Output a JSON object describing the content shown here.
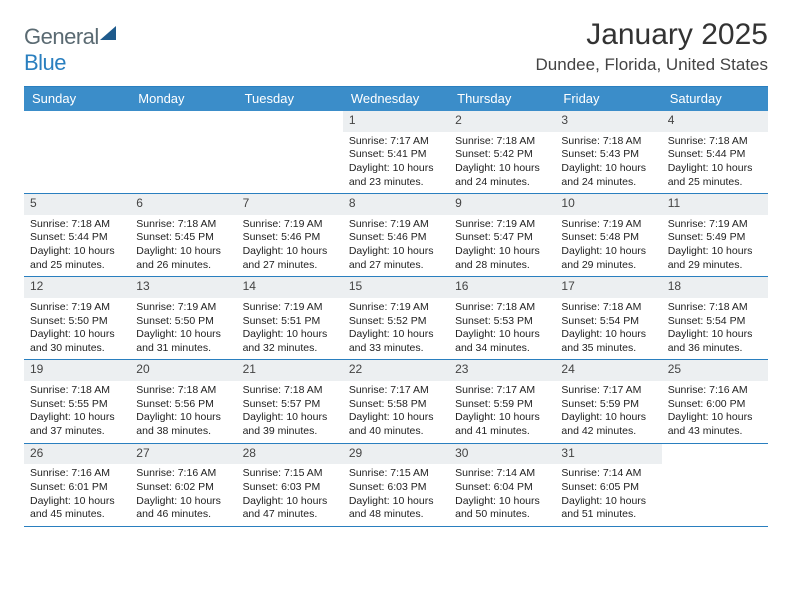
{
  "brand": {
    "part1": "General",
    "part2": "Blue"
  },
  "title": "January 2025",
  "location": "Dundee, Florida, United States",
  "colors": {
    "header_blue": "#3b8dc9",
    "rule_blue": "#2a7fbf",
    "daynum_bg": "#eceff1",
    "text": "#222222"
  },
  "weekdays": [
    "Sunday",
    "Monday",
    "Tuesday",
    "Wednesday",
    "Thursday",
    "Friday",
    "Saturday"
  ],
  "weeks": [
    [
      {
        "n": "",
        "sr": "",
        "ss": "",
        "dl": ""
      },
      {
        "n": "",
        "sr": "",
        "ss": "",
        "dl": ""
      },
      {
        "n": "",
        "sr": "",
        "ss": "",
        "dl": ""
      },
      {
        "n": "1",
        "sr": "7:17 AM",
        "ss": "5:41 PM",
        "dl": "10 hours and 23 minutes."
      },
      {
        "n": "2",
        "sr": "7:18 AM",
        "ss": "5:42 PM",
        "dl": "10 hours and 24 minutes."
      },
      {
        "n": "3",
        "sr": "7:18 AM",
        "ss": "5:43 PM",
        "dl": "10 hours and 24 minutes."
      },
      {
        "n": "4",
        "sr": "7:18 AM",
        "ss": "5:44 PM",
        "dl": "10 hours and 25 minutes."
      }
    ],
    [
      {
        "n": "5",
        "sr": "7:18 AM",
        "ss": "5:44 PM",
        "dl": "10 hours and 25 minutes."
      },
      {
        "n": "6",
        "sr": "7:18 AM",
        "ss": "5:45 PM",
        "dl": "10 hours and 26 minutes."
      },
      {
        "n": "7",
        "sr": "7:19 AM",
        "ss": "5:46 PM",
        "dl": "10 hours and 27 minutes."
      },
      {
        "n": "8",
        "sr": "7:19 AM",
        "ss": "5:46 PM",
        "dl": "10 hours and 27 minutes."
      },
      {
        "n": "9",
        "sr": "7:19 AM",
        "ss": "5:47 PM",
        "dl": "10 hours and 28 minutes."
      },
      {
        "n": "10",
        "sr": "7:19 AM",
        "ss": "5:48 PM",
        "dl": "10 hours and 29 minutes."
      },
      {
        "n": "11",
        "sr": "7:19 AM",
        "ss": "5:49 PM",
        "dl": "10 hours and 29 minutes."
      }
    ],
    [
      {
        "n": "12",
        "sr": "7:19 AM",
        "ss": "5:50 PM",
        "dl": "10 hours and 30 minutes."
      },
      {
        "n": "13",
        "sr": "7:19 AM",
        "ss": "5:50 PM",
        "dl": "10 hours and 31 minutes."
      },
      {
        "n": "14",
        "sr": "7:19 AM",
        "ss": "5:51 PM",
        "dl": "10 hours and 32 minutes."
      },
      {
        "n": "15",
        "sr": "7:19 AM",
        "ss": "5:52 PM",
        "dl": "10 hours and 33 minutes."
      },
      {
        "n": "16",
        "sr": "7:18 AM",
        "ss": "5:53 PM",
        "dl": "10 hours and 34 minutes."
      },
      {
        "n": "17",
        "sr": "7:18 AM",
        "ss": "5:54 PM",
        "dl": "10 hours and 35 minutes."
      },
      {
        "n": "18",
        "sr": "7:18 AM",
        "ss": "5:54 PM",
        "dl": "10 hours and 36 minutes."
      }
    ],
    [
      {
        "n": "19",
        "sr": "7:18 AM",
        "ss": "5:55 PM",
        "dl": "10 hours and 37 minutes."
      },
      {
        "n": "20",
        "sr": "7:18 AM",
        "ss": "5:56 PM",
        "dl": "10 hours and 38 minutes."
      },
      {
        "n": "21",
        "sr": "7:18 AM",
        "ss": "5:57 PM",
        "dl": "10 hours and 39 minutes."
      },
      {
        "n": "22",
        "sr": "7:17 AM",
        "ss": "5:58 PM",
        "dl": "10 hours and 40 minutes."
      },
      {
        "n": "23",
        "sr": "7:17 AM",
        "ss": "5:59 PM",
        "dl": "10 hours and 41 minutes."
      },
      {
        "n": "24",
        "sr": "7:17 AM",
        "ss": "5:59 PM",
        "dl": "10 hours and 42 minutes."
      },
      {
        "n": "25",
        "sr": "7:16 AM",
        "ss": "6:00 PM",
        "dl": "10 hours and 43 minutes."
      }
    ],
    [
      {
        "n": "26",
        "sr": "7:16 AM",
        "ss": "6:01 PM",
        "dl": "10 hours and 45 minutes."
      },
      {
        "n": "27",
        "sr": "7:16 AM",
        "ss": "6:02 PM",
        "dl": "10 hours and 46 minutes."
      },
      {
        "n": "28",
        "sr": "7:15 AM",
        "ss": "6:03 PM",
        "dl": "10 hours and 47 minutes."
      },
      {
        "n": "29",
        "sr": "7:15 AM",
        "ss": "6:03 PM",
        "dl": "10 hours and 48 minutes."
      },
      {
        "n": "30",
        "sr": "7:14 AM",
        "ss": "6:04 PM",
        "dl": "10 hours and 50 minutes."
      },
      {
        "n": "31",
        "sr": "7:14 AM",
        "ss": "6:05 PM",
        "dl": "10 hours and 51 minutes."
      },
      {
        "n": "",
        "sr": "",
        "ss": "",
        "dl": ""
      }
    ]
  ],
  "labels": {
    "sunrise": "Sunrise:",
    "sunset": "Sunset:",
    "daylight": "Daylight:"
  }
}
